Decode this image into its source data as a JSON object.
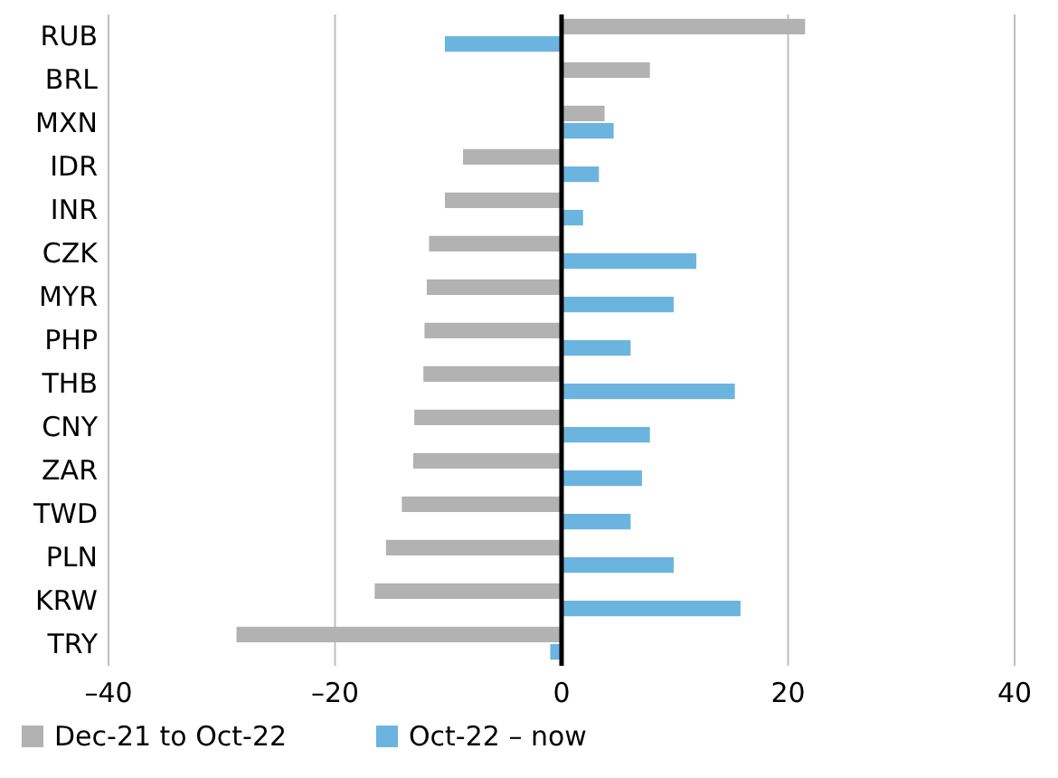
{
  "chart_data": {
    "type": "bar",
    "orientation": "horizontal",
    "categories": [
      "RUB",
      "BRL",
      "MXN",
      "IDR",
      "INR",
      "CZK",
      "MYR",
      "PHP",
      "THB",
      "CNY",
      "ZAR",
      "TWD",
      "PLN",
      "KRW",
      "TRY"
    ],
    "series": [
      {
        "name": "Dec-21 to Oct-22",
        "color": "#b2b2b2",
        "values": [
          21.5,
          7.8,
          3.8,
          -8.7,
          -10.3,
          -11.7,
          -11.9,
          -12.1,
          -12.2,
          -13.0,
          -13.1,
          -14.1,
          -15.5,
          -16.5,
          -28.7
        ]
      },
      {
        "name": "Oct-22 – now",
        "color": "#6cb4e0",
        "values": [
          -10.3,
          null,
          4.6,
          3.3,
          1.9,
          11.9,
          9.9,
          6.1,
          15.3,
          7.8,
          7.1,
          6.1,
          9.9,
          15.8,
          -1.0
        ]
      }
    ],
    "xlim": [
      -40,
      40
    ],
    "xticks": [
      {
        "value": -40,
        "label": "–40"
      },
      {
        "value": -20,
        "label": "–20"
      },
      0,
      20,
      40
    ],
    "grid": "x",
    "legend": "bottom"
  }
}
